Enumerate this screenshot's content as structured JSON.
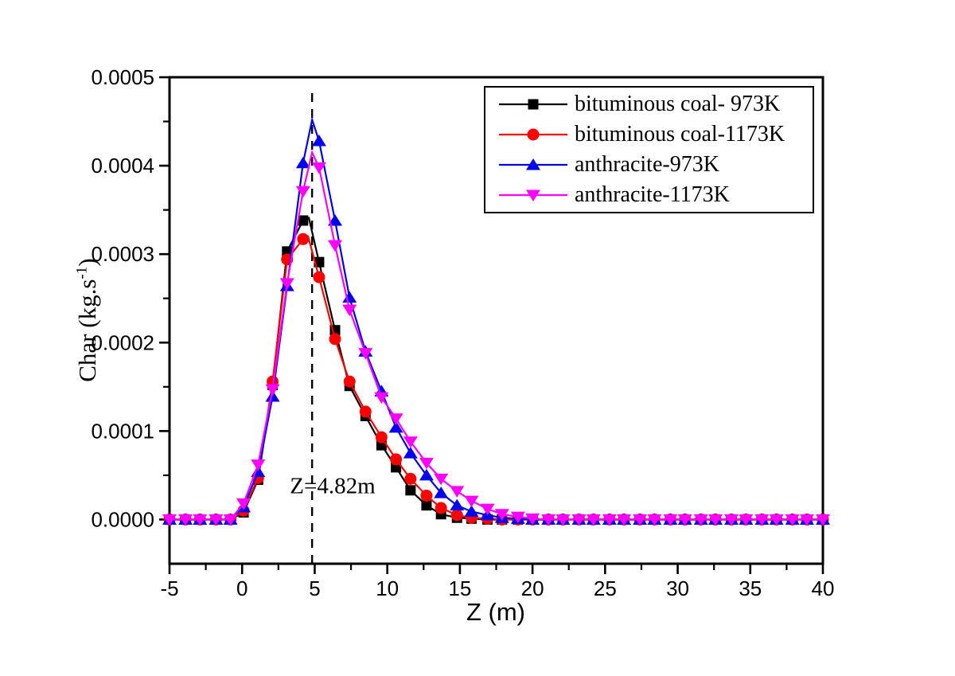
{
  "page": {
    "background": "#ffffff",
    "text_color": "#000000"
  },
  "chart_data": {
    "type": "line",
    "title": "",
    "xlabel": "Z (m)",
    "ylabel": "Char (kg.s-1)",
    "grid": false,
    "legend_position": "top-right",
    "x_axis": {
      "label": "Z (m)",
      "min": -5,
      "max": 40,
      "major_tick_step": 5,
      "minor_tick_step": 2.5,
      "tick_values": [
        -5,
        0,
        5,
        10,
        15,
        20,
        25,
        30,
        35,
        40
      ],
      "tick_labels": [
        "-5",
        "0",
        "5",
        "10",
        "15",
        "20",
        "25",
        "30",
        "35",
        "40"
      ]
    },
    "y_axis": {
      "label": "Char (kg.s⁻¹)",
      "label_parts": {
        "pre": "Char (kg.s",
        "sup": "-1",
        "post": ")"
      },
      "min": 0,
      "max": 0.0005,
      "axis_floor": -5e-05,
      "major_tick_step": 0.0001,
      "minor_tick_step": 5e-05,
      "tick_values": [
        0,
        0.0001,
        0.0002,
        0.0003,
        0.0004,
        0.0005
      ],
      "tick_labels": [
        "0.0000",
        "0.0001",
        "0.0002",
        "0.0003",
        "0.0004",
        "0.0005"
      ]
    },
    "annotation": {
      "text": "Z=4.82m",
      "z": 4.82
    },
    "reference_line": {
      "z": 4.82,
      "style": "dashed",
      "color": "#000000"
    },
    "series": [
      {
        "name": "bituminous coal- 973K",
        "color": "#000000",
        "marker": "square",
        "points": [
          [
            -5,
            0,
            1
          ],
          [
            -3.9,
            0,
            1
          ],
          [
            -2.9,
            0,
            1
          ],
          [
            -1.8,
            0,
            1
          ],
          [
            -0.8,
            0,
            1
          ],
          [
            0.1,
            8e-06,
            1
          ],
          [
            1.1,
            4.5e-05,
            1
          ],
          [
            2.1,
            0.000152,
            1
          ],
          [
            3.1,
            0.000303,
            1
          ],
          [
            4.2,
            0.000338,
            1
          ],
          [
            4.6,
            0.000341,
            0
          ],
          [
            5.3,
            0.000291,
            1
          ],
          [
            6.4,
            0.000214,
            1
          ],
          [
            7.4,
            0.000151,
            1
          ],
          [
            8.5,
            0.000117,
            1
          ],
          [
            9.6,
            8.4e-05,
            1
          ],
          [
            10.6,
            5.9e-05,
            1
          ],
          [
            11.6,
            3.3e-05,
            1
          ],
          [
            12.7,
            1.6e-05,
            1
          ],
          [
            13.7,
            6e-06,
            1
          ],
          [
            14.8,
            2e-06,
            1
          ],
          [
            15.8,
            1e-06,
            1
          ],
          [
            16.9,
            0,
            1
          ],
          [
            17.9,
            0,
            1
          ],
          [
            19,
            0,
            1
          ],
          [
            20,
            0,
            1
          ],
          [
            21.1,
            0,
            1
          ],
          [
            22.1,
            0,
            1
          ],
          [
            23.2,
            0,
            1
          ],
          [
            24.2,
            0,
            1
          ],
          [
            25.3,
            0,
            1
          ],
          [
            26.3,
            0,
            1
          ],
          [
            27.4,
            0,
            1
          ],
          [
            28.4,
            0,
            1
          ],
          [
            29.5,
            0,
            1
          ],
          [
            30.5,
            0,
            1
          ],
          [
            31.6,
            0,
            1
          ],
          [
            32.6,
            0,
            1
          ],
          [
            33.7,
            0,
            1
          ],
          [
            34.7,
            0,
            1
          ],
          [
            35.8,
            0,
            1
          ],
          [
            36.8,
            0,
            1
          ],
          [
            37.9,
            0,
            1
          ],
          [
            38.9,
            0,
            1
          ],
          [
            40,
            0,
            1
          ]
        ]
      },
      {
        "name": "bituminous coal-1173K",
        "color": "#ff0000",
        "marker": "circle",
        "points": [
          [
            -5,
            0,
            1
          ],
          [
            -3.9,
            0,
            1
          ],
          [
            -2.9,
            0,
            1
          ],
          [
            -1.8,
            0,
            1
          ],
          [
            -0.8,
            0,
            1
          ],
          [
            0.1,
            1e-05,
            1
          ],
          [
            1.1,
            4.7e-05,
            1
          ],
          [
            2.1,
            0.000156,
            1
          ],
          [
            3.1,
            0.000294,
            1
          ],
          [
            4.2,
            0.000317,
            1
          ],
          [
            4.55,
            0.00032,
            0
          ],
          [
            5.3,
            0.000274,
            1
          ],
          [
            6.4,
            0.000204,
            1
          ],
          [
            7.4,
            0.000156,
            1
          ],
          [
            8.5,
            0.000122,
            1
          ],
          [
            9.6,
            9.3e-05,
            1
          ],
          [
            10.6,
            6.8e-05,
            1
          ],
          [
            11.6,
            4.6e-05,
            1
          ],
          [
            12.7,
            2.7e-05,
            1
          ],
          [
            13.7,
            1.3e-05,
            1
          ],
          [
            14.8,
            5e-06,
            1
          ],
          [
            15.8,
            2e-06,
            1
          ],
          [
            16.9,
            1e-06,
            1
          ],
          [
            17.9,
            0,
            1
          ],
          [
            19,
            0,
            1
          ],
          [
            20,
            0,
            1
          ],
          [
            21.1,
            0,
            1
          ],
          [
            22.1,
            0,
            1
          ],
          [
            23.2,
            0,
            1
          ],
          [
            24.2,
            0,
            1
          ],
          [
            25.3,
            0,
            1
          ],
          [
            26.3,
            0,
            1
          ],
          [
            27.4,
            0,
            1
          ],
          [
            28.4,
            0,
            1
          ],
          [
            29.5,
            0,
            1
          ],
          [
            30.5,
            0,
            1
          ],
          [
            31.6,
            0,
            1
          ],
          [
            32.6,
            0,
            1
          ],
          [
            33.7,
            0,
            1
          ],
          [
            34.7,
            0,
            1
          ],
          [
            35.8,
            0,
            1
          ],
          [
            36.8,
            0,
            1
          ],
          [
            37.9,
            0,
            1
          ],
          [
            38.9,
            0,
            1
          ],
          [
            40,
            0,
            1
          ]
        ]
      },
      {
        "name": "anthracite-973K",
        "color": "#0000ee",
        "marker": "triangle-up",
        "points": [
          [
            -5,
            0,
            1
          ],
          [
            -3.9,
            0,
            1
          ],
          [
            -2.9,
            0,
            1
          ],
          [
            -1.8,
            0,
            1
          ],
          [
            -0.8,
            0,
            1
          ],
          [
            0.1,
            1.4e-05,
            1
          ],
          [
            1.1,
            5.4e-05,
            1
          ],
          [
            2.1,
            0.000139,
            1
          ],
          [
            3.1,
            0.000264,
            1
          ],
          [
            4.2,
            0.000403,
            1
          ],
          [
            4.82,
            0.000452,
            0
          ],
          [
            5.3,
            0.000428,
            1
          ],
          [
            6.4,
            0.000338,
            1
          ],
          [
            7.4,
            0.000251,
            1
          ],
          [
            8.5,
            0.00019,
            1
          ],
          [
            9.6,
            0.000145,
            1
          ],
          [
            10.6,
            0.000104,
            1
          ],
          [
            11.6,
            7.5e-05,
            1
          ],
          [
            12.7,
            5e-05,
            1
          ],
          [
            13.7,
            3e-05,
            1
          ],
          [
            14.8,
            1.6e-05,
            1
          ],
          [
            15.8,
            9e-06,
            1
          ],
          [
            16.9,
            5e-06,
            1
          ],
          [
            17.9,
            2e-06,
            1
          ],
          [
            19,
            1e-06,
            1
          ],
          [
            20,
            0,
            1
          ],
          [
            21.1,
            0,
            1
          ],
          [
            22.1,
            0,
            1
          ],
          [
            23.2,
            0,
            1
          ],
          [
            24.2,
            0,
            1
          ],
          [
            25.3,
            0,
            1
          ],
          [
            26.3,
            0,
            1
          ],
          [
            27.4,
            0,
            1
          ],
          [
            28.4,
            0,
            1
          ],
          [
            29.5,
            0,
            1
          ],
          [
            30.5,
            0,
            1
          ],
          [
            31.6,
            0,
            1
          ],
          [
            32.6,
            0,
            1
          ],
          [
            33.7,
            0,
            1
          ],
          [
            34.7,
            0,
            1
          ],
          [
            35.8,
            0,
            1
          ],
          [
            36.8,
            0,
            1
          ],
          [
            37.9,
            0,
            1
          ],
          [
            38.9,
            0,
            1
          ],
          [
            40,
            0,
            1
          ]
        ]
      },
      {
        "name": "anthracite-1173K",
        "color": "#ff00ff",
        "marker": "triangle-down",
        "points": [
          [
            -5,
            0,
            1
          ],
          [
            -3.9,
            0,
            1
          ],
          [
            -2.9,
            0,
            1
          ],
          [
            -1.8,
            0,
            1
          ],
          [
            -0.8,
            0,
            1
          ],
          [
            0.1,
            1.8e-05,
            1
          ],
          [
            1.1,
            6.2e-05,
            1
          ],
          [
            2.1,
            0.000147,
            1
          ],
          [
            3.1,
            0.000267,
            1
          ],
          [
            4.2,
            0.000371,
            1
          ],
          [
            4.82,
            0.000415,
            0
          ],
          [
            5.3,
            0.000398,
            1
          ],
          [
            6.4,
            0.00031,
            1
          ],
          [
            7.4,
            0.000237,
            1
          ],
          [
            8.5,
            0.000188,
            1
          ],
          [
            9.6,
            0.000138,
            1
          ],
          [
            10.6,
            0.000114,
            1
          ],
          [
            11.6,
            8.8e-05,
            1
          ],
          [
            12.7,
            6.4e-05,
            1
          ],
          [
            13.7,
            4.6e-05,
            1
          ],
          [
            14.8,
            3.2e-05,
            1
          ],
          [
            15.8,
            2.1e-05,
            1
          ],
          [
            16.9,
            1.2e-05,
            1
          ],
          [
            17.9,
            6e-06,
            1
          ],
          [
            19,
            3e-06,
            1
          ],
          [
            20,
            1e-06,
            1
          ],
          [
            21.1,
            0,
            1
          ],
          [
            22.1,
            0,
            1
          ],
          [
            23.2,
            0,
            1
          ],
          [
            24.2,
            0,
            1
          ],
          [
            25.3,
            0,
            1
          ],
          [
            26.3,
            0,
            1
          ],
          [
            27.4,
            0,
            1
          ],
          [
            28.4,
            0,
            1
          ],
          [
            29.5,
            0,
            1
          ],
          [
            30.5,
            0,
            1
          ],
          [
            31.6,
            0,
            1
          ],
          [
            32.6,
            0,
            1
          ],
          [
            33.7,
            0,
            1
          ],
          [
            34.7,
            0,
            1
          ],
          [
            35.8,
            0,
            1
          ],
          [
            36.8,
            0,
            1
          ],
          [
            37.9,
            0,
            1
          ],
          [
            38.9,
            0,
            1
          ],
          [
            40,
            0,
            1
          ]
        ]
      }
    ]
  }
}
